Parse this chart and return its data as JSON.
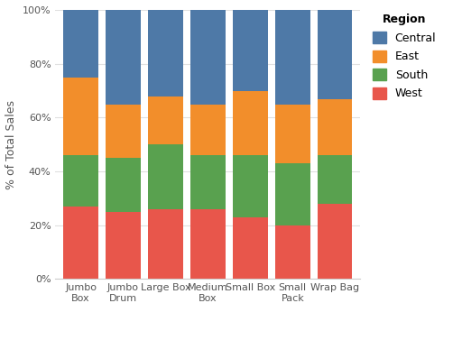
{
  "categories": [
    "Jumbo\nBox",
    "Jumbo\nDrum",
    "Large Box",
    "Medium\nBox",
    "Small Box",
    "Small\nPack",
    "Wrap Bag"
  ],
  "regions": [
    "West",
    "South",
    "East",
    "Central"
  ],
  "colors": [
    "#e8564b",
    "#59a14f",
    "#f28e2b",
    "#4e79a7"
  ],
  "values": {
    "West": [
      0.27,
      0.25,
      0.26,
      0.26,
      0.23,
      0.2,
      0.28
    ],
    "South": [
      0.19,
      0.2,
      0.24,
      0.2,
      0.23,
      0.23,
      0.18
    ],
    "East": [
      0.29,
      0.2,
      0.18,
      0.19,
      0.24,
      0.22,
      0.21
    ],
    "Central": [
      0.25,
      0.35,
      0.32,
      0.35,
      0.3,
      0.35,
      0.33
    ]
  },
  "ylabel": "% of Total Sales",
  "legend_title": "Region",
  "yticks": [
    0.0,
    0.2,
    0.4,
    0.6,
    0.8,
    1.0
  ],
  "ytick_labels": [
    "0%",
    "20%",
    "40%",
    "60%",
    "80%",
    "100%"
  ],
  "background_color": "#ffffff",
  "plot_bg_color": "#ffffff",
  "bar_width": 0.82,
  "grid_color": "#e0e0e0",
  "legend_colors": {
    "Central": "#4e79a7",
    "East": "#f28e2b",
    "South": "#59a14f",
    "West": "#e8564b"
  },
  "spine_color": "#cccccc",
  "tick_color": "#555555",
  "label_fontsize": 8,
  "ylabel_fontsize": 9,
  "legend_fontsize": 9
}
